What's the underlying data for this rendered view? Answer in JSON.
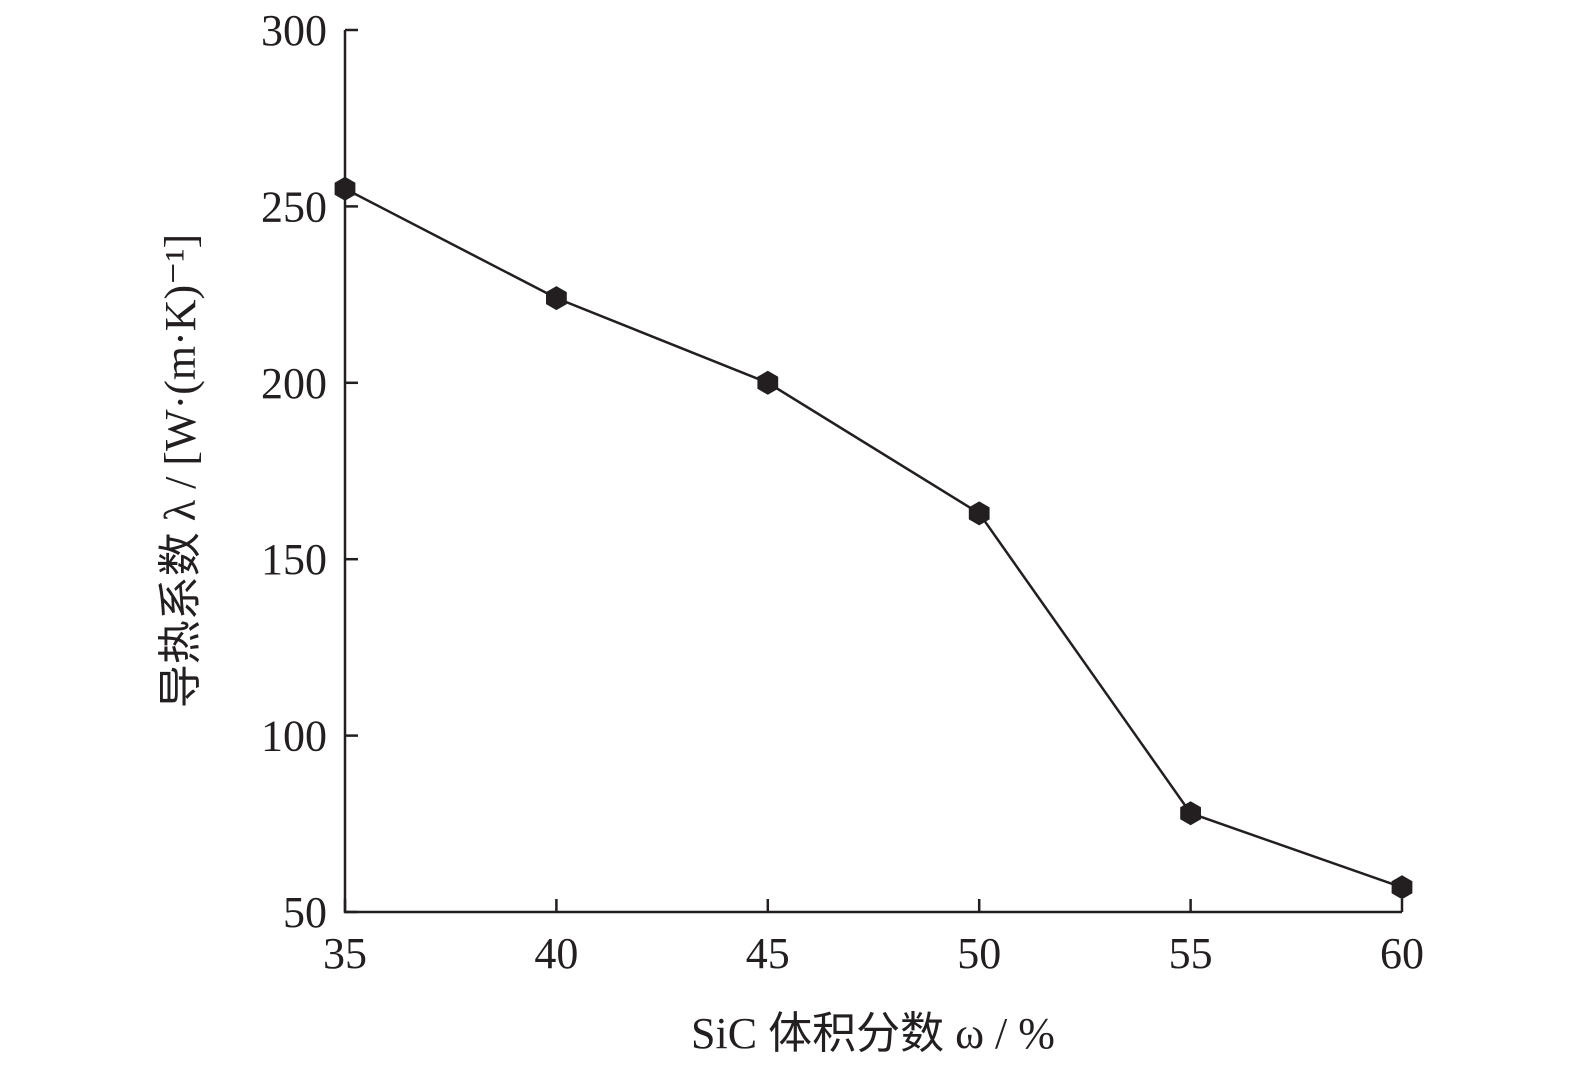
{
  "chart_data": {
    "type": "line",
    "xlabel": "SiC 体积分数 ω / %",
    "ylabel": "导热系数 λ / [W·(m·K)⁻¹]",
    "xlim": [
      35,
      60
    ],
    "ylim": [
      50,
      300
    ],
    "xticks": [
      35,
      40,
      45,
      50,
      55,
      60
    ],
    "yticks": [
      50,
      100,
      150,
      200,
      250,
      300
    ],
    "grid": false,
    "marker": "hexagon",
    "colors": {
      "line": "#231f20",
      "marker": "#231f20"
    },
    "series": [
      {
        "x": [
          35,
          40,
          45,
          50,
          55,
          60
        ],
        "y": [
          255,
          224,
          200,
          163,
          78,
          57
        ]
      }
    ]
  }
}
